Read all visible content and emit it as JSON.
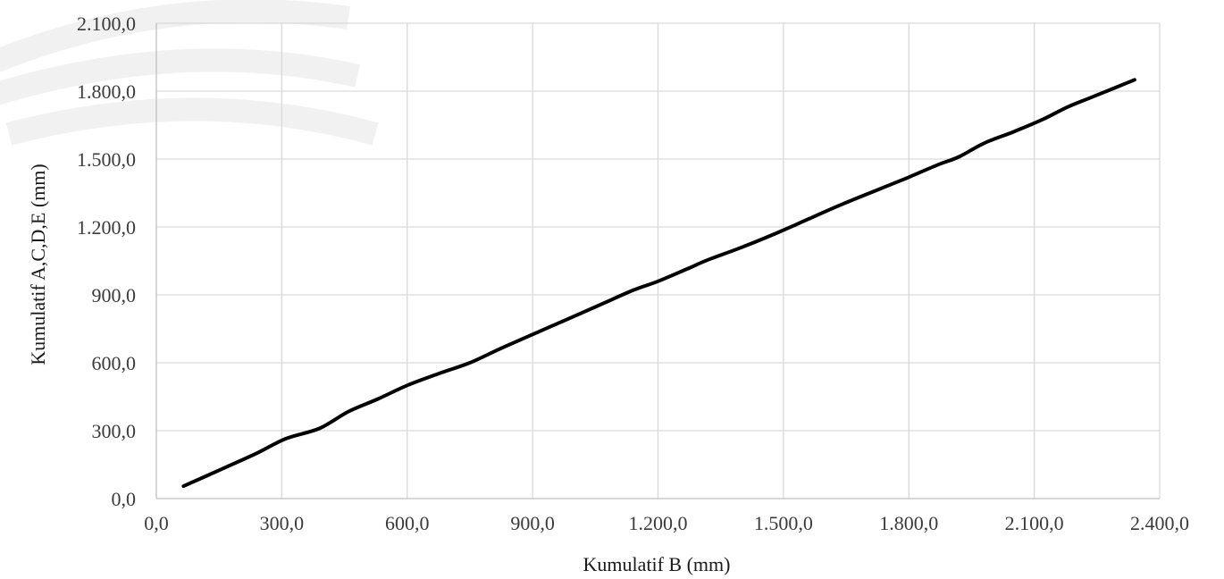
{
  "chart_data": {
    "type": "line",
    "title": "",
    "xlabel": "Kumulatif B (mm)",
    "ylabel": "Kumulatif A,C,D,E (mm)",
    "xlim": [
      0,
      2400
    ],
    "ylim": [
      0,
      2100
    ],
    "xticks": [
      0,
      300,
      600,
      900,
      1200,
      1500,
      1800,
      2100,
      2400
    ],
    "yticks": [
      0,
      300,
      600,
      900,
      1200,
      1500,
      1800,
      2100
    ],
    "xtick_labels": [
      "0,0",
      "300,0",
      "600,0",
      "900,0",
      "1.200,0",
      "1.500,0",
      "1.800,0",
      "2.100,0",
      "2.400,0"
    ],
    "ytick_labels": [
      "0,0",
      "300,0",
      "600,0",
      "900,0",
      "1.200,0",
      "1.500,0",
      "1.800,0",
      "2.100,0"
    ],
    "grid": true,
    "line_color": "#000000",
    "series": [
      {
        "x": [
          65,
          150,
          240,
          310,
          390,
          460,
          530,
          600,
          680,
          750,
          820,
          900,
          980,
          1060,
          1140,
          1200,
          1270,
          1320,
          1400,
          1480,
          1560,
          1640,
          1720,
          1800,
          1870,
          1920,
          1980,
          2050,
          2120,
          2180,
          2240,
          2340
        ],
        "y": [
          55,
          125,
          200,
          265,
          310,
          385,
          440,
          500,
          555,
          600,
          660,
          725,
          790,
          855,
          920,
          960,
          1015,
          1055,
          1110,
          1170,
          1235,
          1300,
          1360,
          1420,
          1475,
          1510,
          1570,
          1620,
          1675,
          1730,
          1775,
          1850
        ]
      }
    ]
  }
}
